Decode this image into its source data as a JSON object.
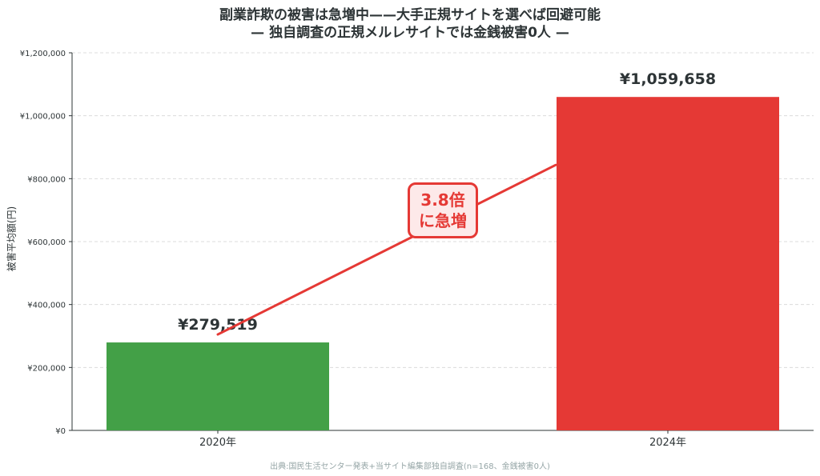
{
  "title_line1": "副業詐欺の被害は急増中——大手正規サイトを選べば回避可能",
  "title_line2": "— 独自調査の正規メルレサイトでは金銭被害0人 —",
  "source": "出典:国民生活センター発表+当サイト編集部独自調査(n=168、金銭被害0人)",
  "annotation": {
    "line1": "3.8倍",
    "line2": "に急増"
  },
  "chart_data": {
    "type": "bar",
    "categories": [
      "2020年",
      "2024年"
    ],
    "values": [
      279519,
      1059658
    ],
    "value_labels": [
      "¥279,519",
      "¥1,059,658"
    ],
    "colors": [
      "#43a047",
      "#e53935"
    ],
    "ylabel": "被害平均額(円)",
    "ylim": [
      0,
      1200000
    ],
    "yticks": [
      0,
      200000,
      400000,
      600000,
      800000,
      1000000,
      1200000
    ],
    "ytick_labels": [
      "¥0",
      "¥200,000",
      "¥400,000",
      "¥600,000",
      "¥800,000",
      "¥1,000,000",
      "¥1,200,000"
    ],
    "grid": true,
    "trend_line_color": "#e53935"
  }
}
